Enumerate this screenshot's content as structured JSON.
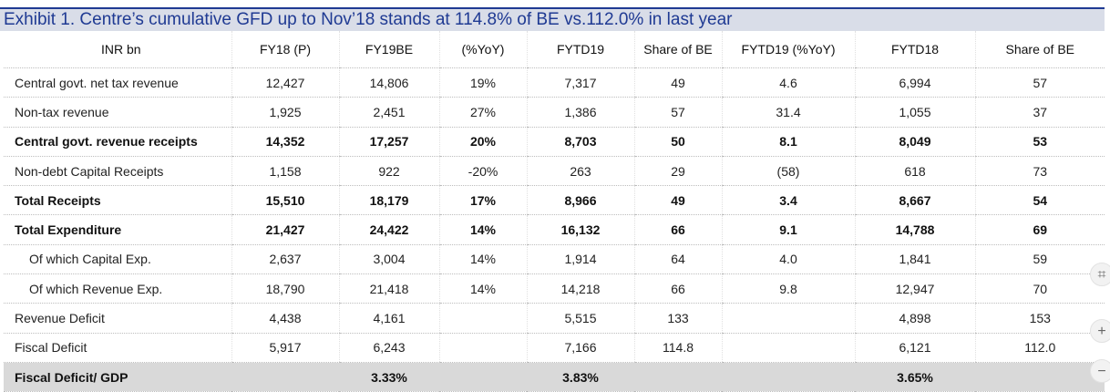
{
  "title": "Exhibit 1. Centre’s cumulative GFD up to Nov’18 stands at 114.8% of BE vs.112.0% in last year",
  "columns": [
    "INR bn",
    "FY18 (P)",
    "FY19BE",
    "(%YoY)",
    "FYTD19",
    "Share of BE",
    "FYTD19 (%YoY)",
    "FYTD18",
    "Share of BE"
  ],
  "rows": [
    {
      "label": "Central govt. net tax revenue",
      "cells": [
        "12,427",
        "14,806",
        "19%",
        "7,317",
        "49",
        "4.6",
        "6,994",
        "57"
      ]
    },
    {
      "label": "Non-tax revenue",
      "cells": [
        "1,925",
        "2,451",
        "27%",
        "1,386",
        "57",
        "31.4",
        "1,055",
        "37"
      ]
    },
    {
      "label": "Central govt. revenue receipts",
      "cells": [
        "14,352",
        "17,257",
        "20%",
        "8,703",
        "50",
        "8.1",
        "8,049",
        "53"
      ]
    },
    {
      "label": "Non-debt Capital Receipts",
      "cells": [
        "1,158",
        "922",
        "-20%",
        "263",
        "29",
        "(58)",
        "618",
        "73"
      ]
    },
    {
      "label": "Total Receipts",
      "cells": [
        "15,510",
        "18,179",
        "17%",
        "8,966",
        "49",
        "3.4",
        "8,667",
        "54"
      ]
    },
    {
      "label": "Total Expenditure",
      "cells": [
        "21,427",
        "24,422",
        "14%",
        "16,132",
        "66",
        "9.1",
        "14,788",
        "69"
      ]
    },
    {
      "label": "Of which Capital Exp.",
      "cells": [
        "2,637",
        "3,004",
        "14%",
        "1,914",
        "64",
        "4.0",
        "1,841",
        "59"
      ]
    },
    {
      "label": "Of which Revenue Exp.",
      "cells": [
        "18,790",
        "21,418",
        "14%",
        "14,218",
        "66",
        "9.8",
        "12,947",
        "70"
      ]
    },
    {
      "label": "Revenue Deficit",
      "cells": [
        "4,438",
        "4,161",
        "",
        "5,515",
        "133",
        "",
        "4,898",
        "153"
      ]
    },
    {
      "label": "Fiscal Deficit",
      "cells": [
        "5,917",
        "6,243",
        "",
        "7,166",
        "114.8",
        "",
        "6,121",
        "112.0"
      ]
    },
    {
      "label": "Fiscal Deficit/ GDP",
      "cells": [
        "",
        "3.33%",
        "",
        "3.83%",
        "",
        "",
        "3.65%",
        ""
      ]
    }
  ],
  "side_buttons": {
    "fit": "⌗",
    "zoom_in": "+",
    "zoom_out": "−"
  }
}
